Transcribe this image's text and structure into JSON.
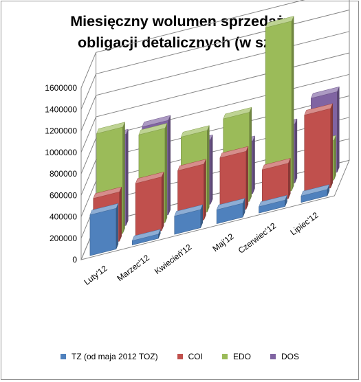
{
  "chart_data": {
    "type": "bar",
    "variant": "3d-column",
    "title_lines": [
      "Miesięczny wolumen sprzedaży",
      "obligacji detalicznych (w szt.)"
    ],
    "categories": [
      "Luty'12",
      "Marzec'12",
      "Kwiecień'12",
      "Maj'12",
      "Czerwiec'12",
      "Lipiec'12"
    ],
    "y_ticks": [
      "0",
      "200000",
      "400000",
      "600000",
      "800000",
      "1000000",
      "1200000",
      "1400000",
      "1600000"
    ],
    "ylim": [
      0,
      1600000
    ],
    "grid": true,
    "legend_position": "bottom",
    "series": [
      {
        "name": "TZ (od maja 2012 TOZ)",
        "color": "#4f81bd",
        "values": [
          380000,
          40000,
          170000,
          130000,
          60000,
          60000
        ]
      },
      {
        "name": "COI",
        "color": "#c0504d",
        "values": [
          460000,
          500000,
          520000,
          540000,
          330000,
          740000
        ]
      },
      {
        "name": "EDO",
        "color": "#9bbb59",
        "values": [
          990000,
          880000,
          760000,
          830000,
          1580000,
          370000
        ]
      },
      {
        "name": "DOS",
        "color": "#8064a2",
        "values": [
          850000,
          880000,
          600000,
          490000,
          550000,
          750000
        ]
      }
    ]
  }
}
